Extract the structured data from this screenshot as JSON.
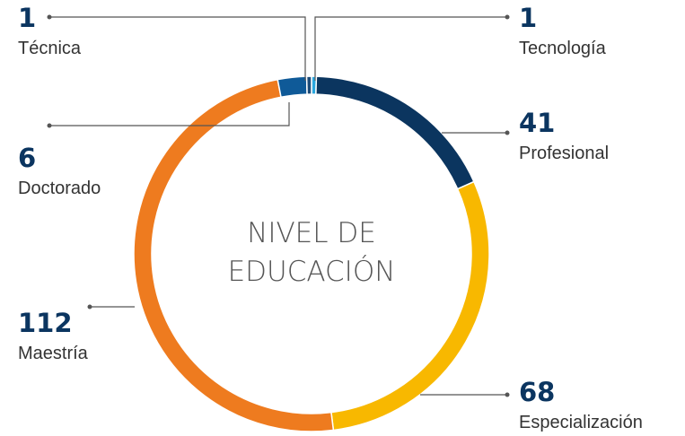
{
  "chart_data": {
    "type": "donut",
    "center_text": [
      "NIVEL DE",
      "EDUCACIÓN"
    ],
    "categories": [
      "Tecnología",
      "Profesional",
      "Especialización",
      "Maestría",
      "Doctorado",
      "Técnica"
    ],
    "values": [
      1,
      41,
      68,
      112,
      6,
      1
    ],
    "colors": [
      "#2aa7df",
      "#0b355f",
      "#f8b800",
      "#ee7b1f",
      "#0f5a98",
      "#1d4b78"
    ]
  }
}
